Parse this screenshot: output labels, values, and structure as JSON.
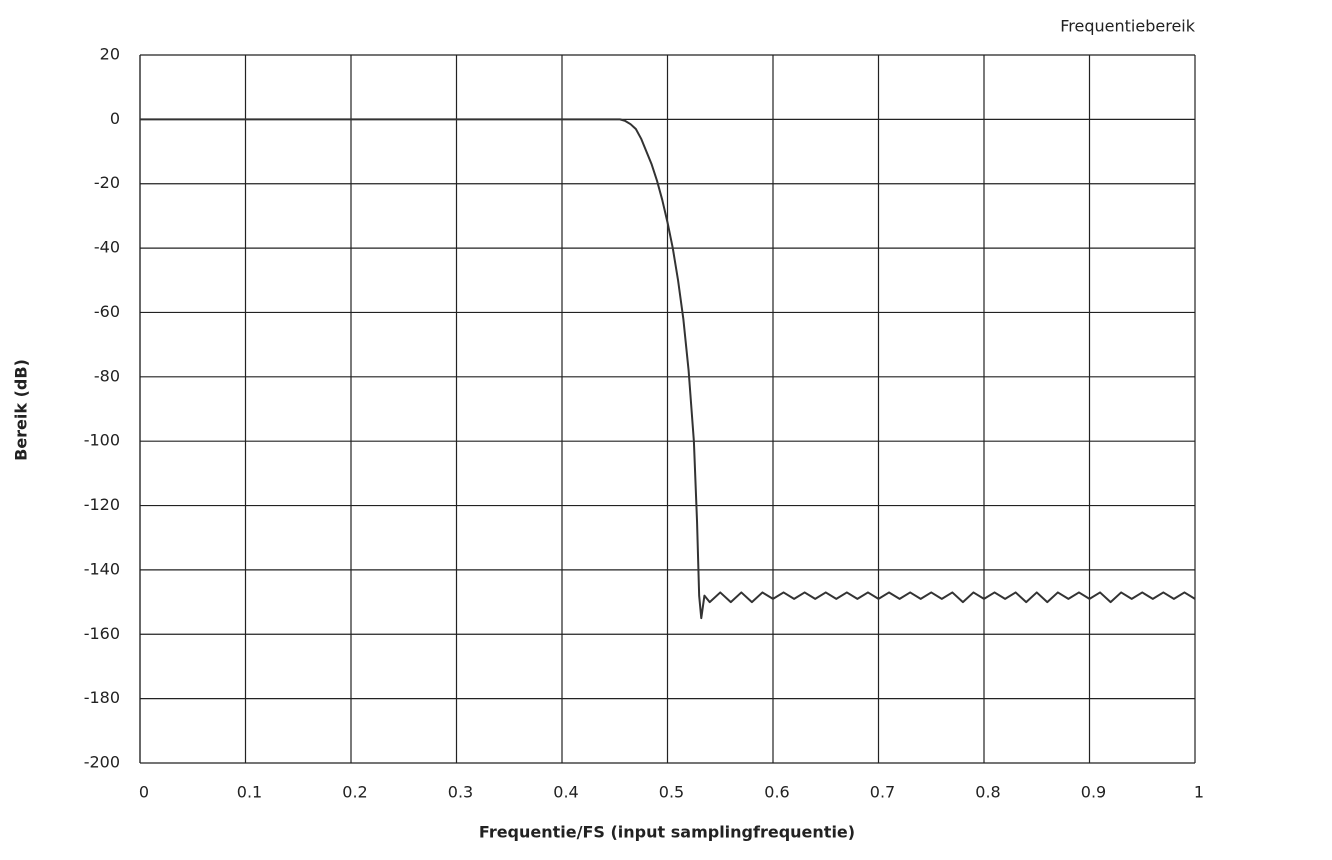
{
  "chart_data": {
    "type": "line",
    "title": "Frequentiebereik",
    "xlabel": "Frequentie/FS (input samplingfrequentie)",
    "ylabel": "Bereik (dB)",
    "xlim": [
      0,
      1
    ],
    "xticks": [
      0,
      0.1,
      0.2,
      0.3,
      0.4,
      0.5,
      0.6,
      0.7,
      0.8,
      0.9,
      1
    ],
    "ylim": [
      -200,
      20
    ],
    "yticks": [
      20,
      0,
      -20,
      -40,
      -60,
      -80,
      -100,
      -120,
      -140,
      -160,
      -180,
      -200
    ],
    "grid": true,
    "series": [
      {
        "color": "#333333",
        "x": [
          0,
          0.1,
          0.2,
          0.3,
          0.4,
          0.45,
          0.455,
          0.46,
          0.465,
          0.47,
          0.475,
          0.48,
          0.485,
          0.49,
          0.495,
          0.5,
          0.505,
          0.51,
          0.515,
          0.52,
          0.525,
          0.528,
          0.53,
          0.532,
          0.535,
          0.54,
          0.55,
          0.56,
          0.57,
          0.58,
          0.59,
          0.6,
          0.61,
          0.62,
          0.63,
          0.64,
          0.65,
          0.66,
          0.67,
          0.68,
          0.69,
          0.7,
          0.71,
          0.72,
          0.73,
          0.74,
          0.75,
          0.76,
          0.77,
          0.78,
          0.79,
          0.8,
          0.81,
          0.82,
          0.83,
          0.84,
          0.85,
          0.86,
          0.87,
          0.88,
          0.89,
          0.9,
          0.91,
          0.92,
          0.93,
          0.94,
          0.95,
          0.96,
          0.97,
          0.98,
          0.99,
          1
        ],
        "values": [
          0,
          0,
          0,
          0,
          0,
          0,
          0,
          -0.5,
          -1.5,
          -3,
          -6,
          -10,
          -14,
          -19,
          -25,
          -32,
          -40,
          -50,
          -62,
          -78,
          -100,
          -125,
          -148,
          -155,
          -148,
          -150,
          -147,
          -150,
          -147,
          -150,
          -147,
          -149,
          -147,
          -149,
          -147,
          -149,
          -147,
          -149,
          -147,
          -149,
          -147,
          -149,
          -147,
          -149,
          -147,
          -149,
          -147,
          -149,
          -147,
          -150,
          -147,
          -149,
          -147,
          -149,
          -147,
          -150,
          -147,
          -150,
          -147,
          -149,
          -147,
          -149,
          -147,
          -150,
          -147,
          -149,
          -147,
          -149,
          -147,
          -149,
          -147,
          -149
        ]
      }
    ]
  }
}
